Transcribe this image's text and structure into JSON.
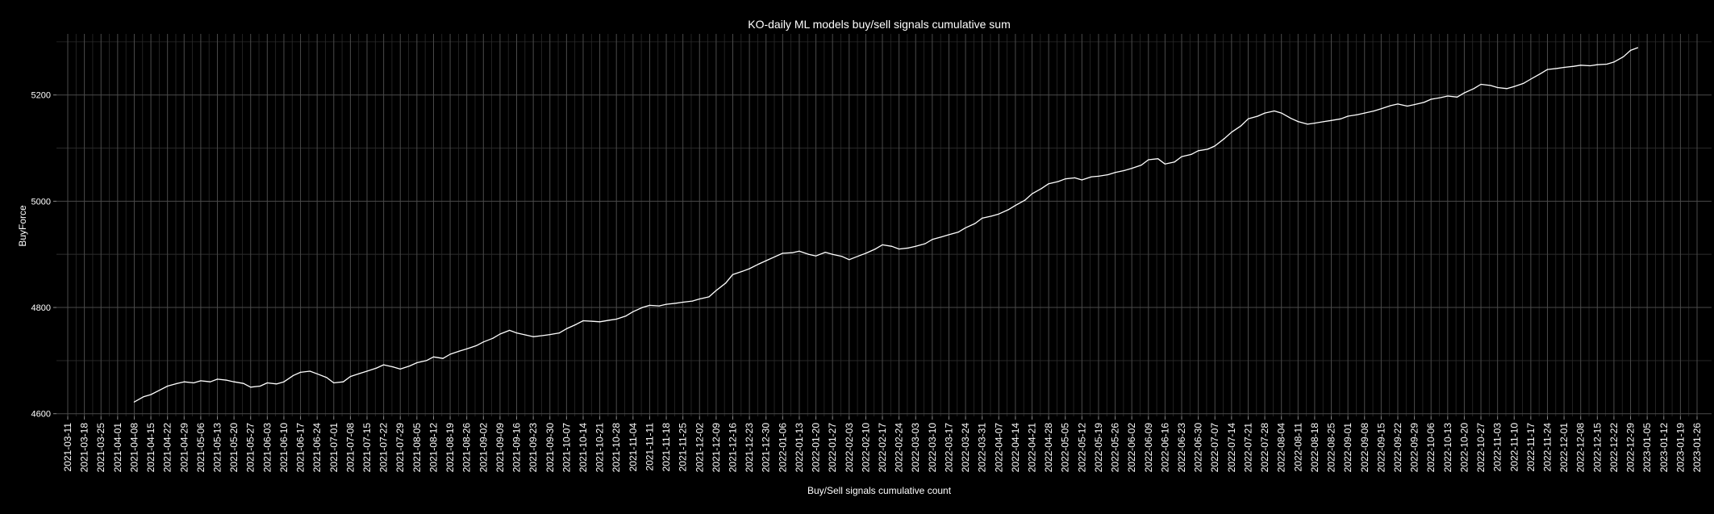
{
  "chart_data": {
    "type": "line",
    "title": "KO-daily ML models buy/sell signals cumulative sum",
    "xlabel": "Buy/Sell signals cumulative count",
    "ylabel": "BuyForce",
    "x_tick_labels": [
      "2021-03-11",
      "2021-03-18",
      "2021-03-25",
      "2021-04-01",
      "2021-04-08",
      "2021-04-15",
      "2021-04-22",
      "2021-04-29",
      "2021-05-06",
      "2021-05-13",
      "2021-05-20",
      "2021-05-27",
      "2021-06-03",
      "2021-06-10",
      "2021-06-17",
      "2021-06-24",
      "2021-07-01",
      "2021-07-08",
      "2021-07-15",
      "2021-07-22",
      "2021-07-29",
      "2021-08-05",
      "2021-08-12",
      "2021-08-19",
      "2021-08-26",
      "2021-09-02",
      "2021-09-09",
      "2021-09-16",
      "2021-09-23",
      "2021-09-30",
      "2021-10-07",
      "2021-10-14",
      "2021-10-21",
      "2021-10-28",
      "2021-11-04",
      "2021-11-11",
      "2021-11-18",
      "2021-11-25",
      "2021-12-02",
      "2021-12-09",
      "2021-12-16",
      "2021-12-23",
      "2021-12-30",
      "2022-01-06",
      "2022-01-13",
      "2022-01-20",
      "2022-01-27",
      "2022-02-03",
      "2022-02-10",
      "2022-02-17",
      "2022-02-24",
      "2022-03-03",
      "2022-03-10",
      "2022-03-17",
      "2022-03-24",
      "2022-03-31",
      "2022-04-07",
      "2022-04-14",
      "2022-04-21",
      "2022-04-28",
      "2022-05-05",
      "2022-05-12",
      "2022-05-19",
      "2022-05-26",
      "2022-06-02",
      "2022-06-09",
      "2022-06-16",
      "2022-06-23",
      "2022-06-30",
      "2022-07-07",
      "2022-07-14",
      "2022-07-21",
      "2022-07-28",
      "2022-08-04",
      "2022-08-11",
      "2022-08-18",
      "2022-08-25",
      "2022-09-01",
      "2022-09-08",
      "2022-09-15",
      "2022-09-22",
      "2022-09-29",
      "2022-10-06",
      "2022-10-13",
      "2022-10-20",
      "2022-10-27",
      "2022-11-03",
      "2022-11-10",
      "2022-11-17",
      "2022-11-24",
      "2022-12-01",
      "2022-12-08",
      "2022-12-15",
      "2022-12-22",
      "2022-12-29",
      "2023-01-05",
      "2023-01-12",
      "2023-01-19",
      "2023-01-26"
    ],
    "x_range": [
      "2021-03-11",
      "2023-01-26"
    ],
    "y_tick_labels": [
      "4600",
      "4800",
      "5000",
      "5200"
    ],
    "y_ticks": [
      4600,
      4800,
      5000,
      5200
    ],
    "ylim": [
      4595,
      5315
    ],
    "grid": true,
    "series": [
      {
        "color": "#ffffff",
        "points": [
          [
            "2021-04-08",
            4622
          ],
          [
            "2021-04-12",
            4632
          ],
          [
            "2021-04-15",
            4636
          ],
          [
            "2021-04-19",
            4645
          ],
          [
            "2021-04-22",
            4652
          ],
          [
            "2021-04-26",
            4657
          ],
          [
            "2021-04-29",
            4660
          ],
          [
            "2021-05-03",
            4658
          ],
          [
            "2021-05-06",
            4662
          ],
          [
            "2021-05-10",
            4660
          ],
          [
            "2021-05-13",
            4665
          ],
          [
            "2021-05-17",
            4663
          ],
          [
            "2021-05-20",
            4660
          ],
          [
            "2021-05-24",
            4657
          ],
          [
            "2021-05-27",
            4650
          ],
          [
            "2021-05-31",
            4652
          ],
          [
            "2021-06-03",
            4658
          ],
          [
            "2021-06-07",
            4656
          ],
          [
            "2021-06-10",
            4660
          ],
          [
            "2021-06-14",
            4672
          ],
          [
            "2021-06-17",
            4678
          ],
          [
            "2021-06-21",
            4680
          ],
          [
            "2021-06-24",
            4675
          ],
          [
            "2021-06-28",
            4668
          ],
          [
            "2021-07-01",
            4658
          ],
          [
            "2021-07-05",
            4660
          ],
          [
            "2021-07-08",
            4670
          ],
          [
            "2021-07-12",
            4676
          ],
          [
            "2021-07-15",
            4680
          ],
          [
            "2021-07-19",
            4686
          ],
          [
            "2021-07-22",
            4692
          ],
          [
            "2021-07-26",
            4688
          ],
          [
            "2021-07-29",
            4684
          ],
          [
            "2021-08-02",
            4690
          ],
          [
            "2021-08-05",
            4696
          ],
          [
            "2021-08-09",
            4700
          ],
          [
            "2021-08-12",
            4707
          ],
          [
            "2021-08-16",
            4704
          ],
          [
            "2021-08-19",
            4712
          ],
          [
            "2021-08-23",
            4718
          ],
          [
            "2021-08-26",
            4722
          ],
          [
            "2021-08-30",
            4728
          ],
          [
            "2021-09-02",
            4735
          ],
          [
            "2021-09-06",
            4742
          ],
          [
            "2021-09-09",
            4750
          ],
          [
            "2021-09-13",
            4757
          ],
          [
            "2021-09-16",
            4752
          ],
          [
            "2021-09-20",
            4748
          ],
          [
            "2021-09-23",
            4745
          ],
          [
            "2021-09-27",
            4747
          ],
          [
            "2021-09-30",
            4749
          ],
          [
            "2021-10-04",
            4752
          ],
          [
            "2021-10-07",
            4760
          ],
          [
            "2021-10-11",
            4768
          ],
          [
            "2021-10-14",
            4775
          ],
          [
            "2021-10-18",
            4774
          ],
          [
            "2021-10-21",
            4773
          ],
          [
            "2021-10-25",
            4776
          ],
          [
            "2021-10-28",
            4778
          ],
          [
            "2021-11-01",
            4784
          ],
          [
            "2021-11-04",
            4792
          ],
          [
            "2021-11-08",
            4800
          ],
          [
            "2021-11-11",
            4804
          ],
          [
            "2021-11-15",
            4803
          ],
          [
            "2021-11-18",
            4806
          ],
          [
            "2021-11-22",
            4808
          ],
          [
            "2021-11-25",
            4810
          ],
          [
            "2021-11-29",
            4812
          ],
          [
            "2021-12-02",
            4816
          ],
          [
            "2021-12-06",
            4820
          ],
          [
            "2021-12-09",
            4832
          ],
          [
            "2021-12-13",
            4846
          ],
          [
            "2021-12-16",
            4862
          ],
          [
            "2021-12-20",
            4868
          ],
          [
            "2021-12-23",
            4873
          ],
          [
            "2021-12-27",
            4882
          ],
          [
            "2021-12-30",
            4888
          ],
          [
            "2022-01-03",
            4896
          ],
          [
            "2022-01-06",
            4902
          ],
          [
            "2022-01-10",
            4903
          ],
          [
            "2022-01-13",
            4906
          ],
          [
            "2022-01-17",
            4900
          ],
          [
            "2022-01-20",
            4897
          ],
          [
            "2022-01-24",
            4904
          ],
          [
            "2022-01-27",
            4900
          ],
          [
            "2022-01-31",
            4896
          ],
          [
            "2022-02-03",
            4890
          ],
          [
            "2022-02-07",
            4897
          ],
          [
            "2022-02-10",
            4902
          ],
          [
            "2022-02-14",
            4910
          ],
          [
            "2022-02-17",
            4918
          ],
          [
            "2022-02-21",
            4915
          ],
          [
            "2022-02-24",
            4910
          ],
          [
            "2022-02-28",
            4912
          ],
          [
            "2022-03-03",
            4915
          ],
          [
            "2022-03-07",
            4920
          ],
          [
            "2022-03-10",
            4928
          ],
          [
            "2022-03-14",
            4933
          ],
          [
            "2022-03-17",
            4937
          ],
          [
            "2022-03-21",
            4942
          ],
          [
            "2022-03-24",
            4950
          ],
          [
            "2022-03-28",
            4958
          ],
          [
            "2022-03-31",
            4968
          ],
          [
            "2022-04-04",
            4972
          ],
          [
            "2022-04-07",
            4976
          ],
          [
            "2022-04-11",
            4984
          ],
          [
            "2022-04-14",
            4992
          ],
          [
            "2022-04-18",
            5002
          ],
          [
            "2022-04-21",
            5014
          ],
          [
            "2022-04-25",
            5024
          ],
          [
            "2022-04-28",
            5033
          ],
          [
            "2022-05-02",
            5037
          ],
          [
            "2022-05-05",
            5042
          ],
          [
            "2022-05-09",
            5044
          ],
          [
            "2022-05-12",
            5040
          ],
          [
            "2022-05-16",
            5046
          ],
          [
            "2022-05-19",
            5047
          ],
          [
            "2022-05-23",
            5050
          ],
          [
            "2022-05-26",
            5054
          ],
          [
            "2022-05-30",
            5058
          ],
          [
            "2022-06-02",
            5062
          ],
          [
            "2022-06-06",
            5068
          ],
          [
            "2022-06-09",
            5078
          ],
          [
            "2022-06-13",
            5080
          ],
          [
            "2022-06-16",
            5070
          ],
          [
            "2022-06-20",
            5074
          ],
          [
            "2022-06-23",
            5084
          ],
          [
            "2022-06-27",
            5088
          ],
          [
            "2022-06-30",
            5095
          ],
          [
            "2022-07-04",
            5098
          ],
          [
            "2022-07-07",
            5104
          ],
          [
            "2022-07-11",
            5118
          ],
          [
            "2022-07-14",
            5130
          ],
          [
            "2022-07-18",
            5142
          ],
          [
            "2022-07-21",
            5155
          ],
          [
            "2022-07-25",
            5160
          ],
          [
            "2022-07-28",
            5166
          ],
          [
            "2022-08-01",
            5170
          ],
          [
            "2022-08-04",
            5166
          ],
          [
            "2022-08-08",
            5156
          ],
          [
            "2022-08-11",
            5150
          ],
          [
            "2022-08-15",
            5145
          ],
          [
            "2022-08-18",
            5147
          ],
          [
            "2022-08-22",
            5150
          ],
          [
            "2022-08-25",
            5152
          ],
          [
            "2022-08-29",
            5155
          ],
          [
            "2022-09-01",
            5160
          ],
          [
            "2022-09-05",
            5163
          ],
          [
            "2022-09-08",
            5166
          ],
          [
            "2022-09-12",
            5170
          ],
          [
            "2022-09-15",
            5174
          ],
          [
            "2022-09-19",
            5180
          ],
          [
            "2022-09-22",
            5183
          ],
          [
            "2022-09-26",
            5179
          ],
          [
            "2022-09-29",
            5182
          ],
          [
            "2022-10-03",
            5186
          ],
          [
            "2022-10-06",
            5192
          ],
          [
            "2022-10-10",
            5195
          ],
          [
            "2022-10-13",
            5198
          ],
          [
            "2022-10-17",
            5196
          ],
          [
            "2022-10-20",
            5204
          ],
          [
            "2022-10-24",
            5212
          ],
          [
            "2022-10-27",
            5220
          ],
          [
            "2022-10-31",
            5218
          ],
          [
            "2022-11-03",
            5214
          ],
          [
            "2022-11-07",
            5212
          ],
          [
            "2022-11-10",
            5216
          ],
          [
            "2022-11-14",
            5222
          ],
          [
            "2022-11-17",
            5230
          ],
          [
            "2022-11-21",
            5240
          ],
          [
            "2022-11-24",
            5248
          ],
          [
            "2022-11-28",
            5250
          ],
          [
            "2022-12-01",
            5252
          ],
          [
            "2022-12-05",
            5254
          ],
          [
            "2022-12-08",
            5256
          ],
          [
            "2022-12-12",
            5255
          ],
          [
            "2022-12-15",
            5257
          ],
          [
            "2022-12-19",
            5258
          ],
          [
            "2022-12-22",
            5262
          ],
          [
            "2022-12-26",
            5272
          ],
          [
            "2022-12-29",
            5284
          ],
          [
            "2023-01-01",
            5289
          ]
        ]
      }
    ]
  }
}
